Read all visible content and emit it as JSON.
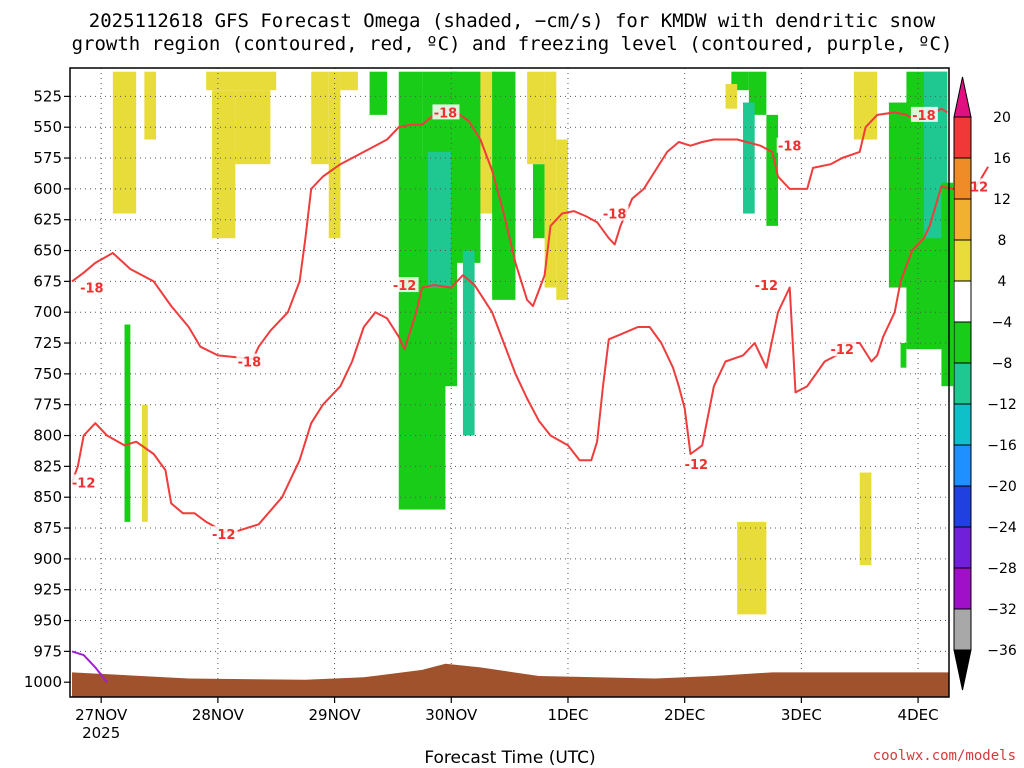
{
  "title": {
    "line1": "2025112618 GFS Forecast Omega (shaded, −cm/s) for KMDW with dendritic snow",
    "line2": "growth region (contoured, red, ºC) and freezing level (contoured, purple, ºC)"
  },
  "credit": "coolwx.com/models",
  "chart_data": {
    "type": "area",
    "xlabel": "Forecast Time (UTC)",
    "ylabel": "",
    "x_range": [
      "2025-11-26T18Z",
      "2025-12-04T06Z"
    ],
    "x_ticks": [
      {
        "label": "27NOV",
        "sublabel": "2025",
        "day": 0.25
      },
      {
        "label": "28NOV",
        "sublabel": "",
        "day": 1.25
      },
      {
        "label": "29NOV",
        "sublabel": "",
        "day": 2.25
      },
      {
        "label": "30NOV",
        "sublabel": "",
        "day": 3.25
      },
      {
        "label": "1DEC",
        "sublabel": "",
        "day": 4.25
      },
      {
        "label": "2DEC",
        "sublabel": "",
        "day": 5.25
      },
      {
        "label": "3DEC",
        "sublabel": "",
        "day": 6.25
      },
      {
        "label": "4DEC",
        "sublabel": "",
        "day": 7.25
      }
    ],
    "y_axis": {
      "units": "hPa",
      "range": [
        1012,
        502
      ],
      "inverted": true,
      "ticks": [
        525,
        550,
        575,
        600,
        625,
        650,
        675,
        700,
        725,
        750,
        775,
        800,
        825,
        850,
        875,
        900,
        925,
        950,
        975,
        1000
      ]
    },
    "grid": true,
    "legend": "right",
    "colorbar": {
      "labels": [
        "20",
        "16",
        "12",
        "8",
        "4",
        "−4",
        "−8",
        "−12",
        "−16",
        "−20",
        "−24",
        "−28",
        "−32",
        "−36"
      ],
      "bands": [
        {
          "range": [
            16,
            20
          ],
          "color": "#f03838"
        },
        {
          "range": [
            12,
            16
          ],
          "color": "#f08c28"
        },
        {
          "range": [
            8,
            12
          ],
          "color": "#f0b030"
        },
        {
          "range": [
            4,
            8
          ],
          "color": "#e8dc3a"
        },
        {
          "range": [
            -4,
            4
          ],
          "color": "#ffffff"
        },
        {
          "range": [
            -8,
            -4
          ],
          "color": "#18cc18"
        },
        {
          "range": [
            -12,
            -8
          ],
          "color": "#1ec890"
        },
        {
          "range": [
            -16,
            -12
          ],
          "color": "#10c0c8"
        },
        {
          "range": [
            -20,
            -16
          ],
          "color": "#1e90ff"
        },
        {
          "range": [
            -24,
            -20
          ],
          "color": "#2040e0"
        },
        {
          "range": [
            -28,
            -24
          ],
          "color": "#7020d8"
        },
        {
          "range": [
            -32,
            -28
          ],
          "color": "#a010c8"
        },
        {
          "range": [
            -36,
            -32
          ],
          "color": "#a8a8a8"
        }
      ],
      "over_color": "#e01080",
      "under_color": "#000000"
    },
    "series": [
      {
        "type": "contour",
        "level": -18,
        "color": "#ef3c3c",
        "points": [
          [
            0,
            675
          ],
          [
            0.1,
            668
          ],
          [
            0.2,
            660
          ],
          [
            0.35,
            652
          ],
          [
            0.5,
            665
          ],
          [
            0.7,
            675
          ],
          [
            0.85,
            695
          ],
          [
            1.0,
            712
          ],
          [
            1.1,
            728
          ],
          [
            1.25,
            735
          ],
          [
            1.45,
            737
          ],
          [
            1.55,
            738
          ],
          [
            1.6,
            728
          ],
          [
            1.7,
            715
          ],
          [
            1.85,
            700
          ],
          [
            1.95,
            675
          ],
          [
            2.0,
            640
          ],
          [
            2.05,
            600
          ],
          [
            2.15,
            590
          ],
          [
            2.3,
            580
          ],
          [
            2.5,
            570
          ],
          [
            2.7,
            560
          ],
          [
            2.8,
            550
          ],
          [
            2.9,
            548
          ],
          [
            3.0,
            548
          ],
          [
            3.1,
            540
          ],
          [
            3.25,
            535
          ],
          [
            3.4,
            545
          ],
          [
            3.5,
            560
          ],
          [
            3.6,
            585
          ],
          [
            3.7,
            620
          ],
          [
            3.8,
            660
          ],
          [
            3.9,
            690
          ],
          [
            3.95,
            695
          ],
          [
            4.05,
            670
          ],
          [
            4.1,
            630
          ],
          [
            4.2,
            620
          ],
          [
            4.3,
            618
          ],
          [
            4.4,
            622
          ],
          [
            4.5,
            627
          ],
          [
            4.6,
            640
          ],
          [
            4.65,
            645
          ],
          [
            4.7,
            630
          ],
          [
            4.8,
            608
          ],
          [
            4.9,
            600
          ],
          [
            5.0,
            585
          ],
          [
            5.1,
            570
          ],
          [
            5.2,
            562
          ],
          [
            5.3,
            565
          ],
          [
            5.4,
            562
          ],
          [
            5.5,
            560
          ],
          [
            5.7,
            560
          ],
          [
            5.9,
            565
          ],
          [
            6.0,
            570
          ],
          [
            6.05,
            590
          ],
          [
            6.15,
            600
          ],
          [
            6.3,
            600
          ],
          [
            6.35,
            583
          ],
          [
            6.5,
            580
          ],
          [
            6.6,
            575
          ],
          [
            6.75,
            570
          ],
          [
            6.8,
            550
          ],
          [
            6.9,
            540
          ],
          [
            7.05,
            538
          ],
          [
            7.15,
            540
          ],
          [
            7.25,
            545
          ],
          [
            7.35,
            540
          ],
          [
            7.45,
            535
          ],
          [
            7.5,
            538
          ]
        ]
      },
      {
        "type": "contour",
        "level": -12,
        "color": "#ef3c3c",
        "points": [
          [
            0,
            838
          ],
          [
            0.05,
            825
          ],
          [
            0.1,
            800
          ],
          [
            0.2,
            790
          ],
          [
            0.3,
            800
          ],
          [
            0.45,
            808
          ],
          [
            0.55,
            805
          ],
          [
            0.7,
            815
          ],
          [
            0.8,
            828
          ],
          [
            0.85,
            855
          ],
          [
            0.95,
            863
          ],
          [
            1.05,
            863
          ],
          [
            1.15,
            870
          ],
          [
            1.3,
            878
          ],
          [
            1.4,
            878
          ],
          [
            1.6,
            872
          ],
          [
            1.8,
            850
          ],
          [
            1.95,
            820
          ],
          [
            2.05,
            790
          ],
          [
            2.15,
            775
          ],
          [
            2.3,
            760
          ],
          [
            2.4,
            740
          ],
          [
            2.5,
            712
          ],
          [
            2.6,
            700
          ],
          [
            2.7,
            705
          ],
          [
            2.8,
            720
          ],
          [
            2.85,
            730
          ],
          [
            2.95,
            700
          ],
          [
            3.0,
            680
          ],
          [
            3.1,
            678
          ],
          [
            3.25,
            680
          ],
          [
            3.35,
            670
          ],
          [
            3.45,
            678
          ],
          [
            3.6,
            700
          ],
          [
            3.7,
            725
          ],
          [
            3.8,
            750
          ],
          [
            3.9,
            770
          ],
          [
            4.0,
            788
          ],
          [
            4.1,
            800
          ],
          [
            4.25,
            808
          ],
          [
            4.35,
            820
          ],
          [
            4.45,
            820
          ],
          [
            4.5,
            805
          ],
          [
            4.55,
            760
          ],
          [
            4.6,
            722
          ],
          [
            4.7,
            718
          ],
          [
            4.85,
            712
          ],
          [
            4.95,
            712
          ],
          [
            5.05,
            725
          ],
          [
            5.15,
            745
          ],
          [
            5.2,
            760
          ],
          [
            5.25,
            778
          ],
          [
            5.3,
            815
          ],
          [
            5.4,
            808
          ],
          [
            5.5,
            760
          ],
          [
            5.6,
            740
          ],
          [
            5.75,
            735
          ],
          [
            5.85,
            725
          ],
          [
            5.95,
            745
          ],
          [
            6.05,
            700
          ],
          [
            6.15,
            680
          ],
          [
            6.2,
            765
          ],
          [
            6.3,
            760
          ],
          [
            6.45,
            740
          ],
          [
            6.55,
            735
          ],
          [
            6.6,
            725
          ],
          [
            6.75,
            725
          ],
          [
            6.85,
            740
          ],
          [
            6.9,
            735
          ],
          [
            6.95,
            720
          ],
          [
            7.05,
            700
          ],
          [
            7.1,
            675
          ],
          [
            7.2,
            650
          ],
          [
            7.3,
            640
          ],
          [
            7.35,
            630
          ],
          [
            7.45,
            598
          ],
          [
            7.55,
            600
          ],
          [
            7.7,
            600
          ],
          [
            7.75,
            598
          ],
          [
            7.8,
            590
          ],
          [
            7.85,
            582
          ]
        ]
      },
      {
        "type": "contour",
        "level": 0,
        "color": "#a020d0",
        "points": [
          [
            0,
            975
          ],
          [
            0.1,
            978
          ],
          [
            0.2,
            988
          ],
          [
            0.3,
            1000
          ]
        ]
      }
    ],
    "terrain": {
      "color": "#a0522d",
      "surface_pressure": [
        [
          0,
          992
        ],
        [
          1,
          997
        ],
        [
          2,
          998
        ],
        [
          2.5,
          996
        ],
        [
          3,
          990
        ],
        [
          3.2,
          985
        ],
        [
          3.5,
          988
        ],
        [
          4,
          995
        ],
        [
          5,
          997
        ],
        [
          5.5,
          995
        ],
        [
          6,
          992
        ],
        [
          7,
          992
        ],
        [
          7.5,
          992
        ]
      ]
    },
    "contour_labels": [
      {
        "text": "-18",
        "day": 0.17,
        "p": 680
      },
      {
        "text": "-18",
        "day": 1.52,
        "p": 740
      },
      {
        "text": "-18",
        "day": 3.2,
        "p": 538
      },
      {
        "text": "-18",
        "day": 4.65,
        "p": 620
      },
      {
        "text": "-18",
        "day": 6.15,
        "p": 565
      },
      {
        "text": "-18",
        "day": 7.3,
        "p": 540
      },
      {
        "text": "-12",
        "day": 0.1,
        "p": 838
      },
      {
        "text": "-12",
        "day": 1.3,
        "p": 880
      },
      {
        "text": "-12",
        "day": 2.85,
        "p": 678
      },
      {
        "text": "-12",
        "day": 5.95,
        "p": 678
      },
      {
        "text": "-12",
        "day": 5.35,
        "p": 823
      },
      {
        "text": "-12",
        "day": 6.6,
        "p": 730
      },
      {
        "text": "-12",
        "day": 7.75,
        "p": 598
      }
    ]
  }
}
